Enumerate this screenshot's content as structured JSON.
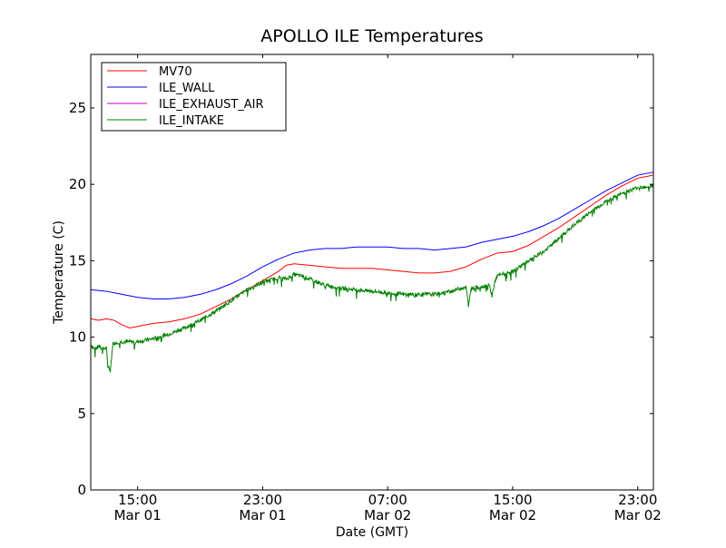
{
  "chart_data": {
    "type": "line",
    "title": "APOLLO ILE Temperatures",
    "xlabel": "Date (GMT)",
    "ylabel": "Temperature (C)",
    "ylim": [
      0,
      28.5
    ],
    "xlim": [
      "2013-03-01 12:00",
      "2013-03-03 00:00"
    ],
    "x_ticks": [
      {
        "time": "2013-03-01 15:00",
        "line1": "15:00",
        "line2": "Mar 01"
      },
      {
        "time": "2013-03-01 23:00",
        "line1": "23:00",
        "line2": "Mar 01"
      },
      {
        "time": "2013-03-02 07:00",
        "line1": "07:00",
        "line2": "Mar 02"
      },
      {
        "time": "2013-03-02 15:00",
        "line1": "15:00",
        "line2": "Mar 02"
      },
      {
        "time": "2013-03-02 23:00",
        "line1": "23:00",
        "line2": "Mar 02"
      }
    ],
    "y_ticks": [
      0,
      5,
      10,
      15,
      20,
      25
    ],
    "legend_position": "top-left",
    "grid": false,
    "series": [
      {
        "name": "MV70",
        "color": "#ff0000",
        "points": [
          [
            "2013-03-01 12:00",
            11.2
          ],
          [
            "2013-03-01 12:30",
            11.1
          ],
          [
            "2013-03-01 13:00",
            11.2
          ],
          [
            "2013-03-01 13:30",
            11.1
          ],
          [
            "2013-03-01 14:00",
            10.8
          ],
          [
            "2013-03-01 14:30",
            10.6
          ],
          [
            "2013-03-01 15:00",
            10.7
          ],
          [
            "2013-03-01 16:00",
            10.9
          ],
          [
            "2013-03-01 17:00",
            11.0
          ],
          [
            "2013-03-01 18:00",
            11.2
          ],
          [
            "2013-03-01 19:00",
            11.5
          ],
          [
            "2013-03-01 20:00",
            12.0
          ],
          [
            "2013-03-01 21:00",
            12.5
          ],
          [
            "2013-03-01 22:00",
            13.1
          ],
          [
            "2013-03-01 23:00",
            13.7
          ],
          [
            "2013-03-02 00:00",
            14.3
          ],
          [
            "2013-03-02 00:30",
            14.7
          ],
          [
            "2013-03-02 01:00",
            14.8
          ],
          [
            "2013-03-02 02:00",
            14.7
          ],
          [
            "2013-03-02 03:00",
            14.6
          ],
          [
            "2013-03-02 04:00",
            14.5
          ],
          [
            "2013-03-02 06:00",
            14.5
          ],
          [
            "2013-03-02 07:00",
            14.4
          ],
          [
            "2013-03-02 08:00",
            14.3
          ],
          [
            "2013-03-02 09:00",
            14.2
          ],
          [
            "2013-03-02 10:00",
            14.2
          ],
          [
            "2013-03-02 11:00",
            14.3
          ],
          [
            "2013-03-02 12:00",
            14.6
          ],
          [
            "2013-03-02 13:00",
            15.1
          ],
          [
            "2013-03-02 14:00",
            15.5
          ],
          [
            "2013-03-02 15:00",
            15.6
          ],
          [
            "2013-03-02 16:00",
            16.0
          ],
          [
            "2013-03-02 17:00",
            16.6
          ],
          [
            "2013-03-02 18:00",
            17.2
          ],
          [
            "2013-03-02 19:00",
            17.9
          ],
          [
            "2013-03-02 20:00",
            18.6
          ],
          [
            "2013-03-02 21:00",
            19.3
          ],
          [
            "2013-03-02 22:00",
            19.9
          ],
          [
            "2013-03-02 23:00",
            20.4
          ],
          [
            "2013-03-03 00:00",
            20.6
          ]
        ]
      },
      {
        "name": "ILE_WALL",
        "color": "#0000ff",
        "points": [
          [
            "2013-03-01 12:00",
            13.1
          ],
          [
            "2013-03-01 13:00",
            13.0
          ],
          [
            "2013-03-01 14:00",
            12.8
          ],
          [
            "2013-03-01 15:00",
            12.6
          ],
          [
            "2013-03-01 16:00",
            12.5
          ],
          [
            "2013-03-01 17:00",
            12.5
          ],
          [
            "2013-03-01 18:00",
            12.6
          ],
          [
            "2013-03-01 19:00",
            12.8
          ],
          [
            "2013-03-01 20:00",
            13.1
          ],
          [
            "2013-03-01 21:00",
            13.5
          ],
          [
            "2013-03-01 22:00",
            14.0
          ],
          [
            "2013-03-01 23:00",
            14.6
          ],
          [
            "2013-03-02 00:00",
            15.1
          ],
          [
            "2013-03-02 01:00",
            15.5
          ],
          [
            "2013-03-02 02:00",
            15.7
          ],
          [
            "2013-03-02 03:00",
            15.8
          ],
          [
            "2013-03-02 04:00",
            15.8
          ],
          [
            "2013-03-02 05:00",
            15.9
          ],
          [
            "2013-03-02 07:00",
            15.9
          ],
          [
            "2013-03-02 08:00",
            15.8
          ],
          [
            "2013-03-02 09:00",
            15.8
          ],
          [
            "2013-03-02 10:00",
            15.7
          ],
          [
            "2013-03-02 11:00",
            15.8
          ],
          [
            "2013-03-02 12:00",
            15.9
          ],
          [
            "2013-03-02 13:00",
            16.2
          ],
          [
            "2013-03-02 14:00",
            16.4
          ],
          [
            "2013-03-02 15:00",
            16.6
          ],
          [
            "2013-03-02 16:00",
            16.9
          ],
          [
            "2013-03-02 17:00",
            17.3
          ],
          [
            "2013-03-02 18:00",
            17.8
          ],
          [
            "2013-03-02 19:00",
            18.4
          ],
          [
            "2013-03-02 20:00",
            19.0
          ],
          [
            "2013-03-02 21:00",
            19.6
          ],
          [
            "2013-03-02 22:00",
            20.1
          ],
          [
            "2013-03-02 23:00",
            20.6
          ],
          [
            "2013-03-03 00:00",
            20.8
          ]
        ]
      },
      {
        "name": "ILE_EXHAUST_AIR",
        "color": "#bf00bf",
        "points": []
      },
      {
        "name": "ILE_INTAKE",
        "color": "#008000",
        "points": [
          [
            "2013-03-01 12:00",
            9.5
          ],
          [
            "2013-03-01 12:15",
            9.2
          ],
          [
            "2013-03-01 12:30",
            9.4
          ],
          [
            "2013-03-01 12:45",
            9.2
          ],
          [
            "2013-03-01 13:00",
            9.3
          ],
          [
            "2013-03-01 13:05",
            8.2
          ],
          [
            "2013-03-01 13:15",
            7.8
          ],
          [
            "2013-03-01 13:25",
            9.6
          ],
          [
            "2013-03-01 14:00",
            9.7
          ],
          [
            "2013-03-01 15:00",
            9.7
          ],
          [
            "2013-03-01 16:00",
            9.9
          ],
          [
            "2013-03-01 17:00",
            10.2
          ],
          [
            "2013-03-01 18:00",
            10.6
          ],
          [
            "2013-03-01 19:00",
            11.1
          ],
          [
            "2013-03-01 20:00",
            11.7
          ],
          [
            "2013-03-01 21:00",
            12.4
          ],
          [
            "2013-03-01 22:00",
            13.1
          ],
          [
            "2013-03-01 23:00",
            13.6
          ],
          [
            "2013-03-02 00:00",
            13.9
          ],
          [
            "2013-03-02 00:30",
            13.8
          ],
          [
            "2013-03-02 01:00",
            14.1
          ],
          [
            "2013-03-02 01:30",
            14.0
          ],
          [
            "2013-03-02 02:00",
            13.8
          ],
          [
            "2013-03-02 03:00",
            13.4
          ],
          [
            "2013-03-02 04:00",
            13.2
          ],
          [
            "2013-03-02 05:00",
            13.1
          ],
          [
            "2013-03-02 06:00",
            13.0
          ],
          [
            "2013-03-02 07:00",
            12.9
          ],
          [
            "2013-03-02 08:00",
            12.8
          ],
          [
            "2013-03-02 09:00",
            12.8
          ],
          [
            "2013-03-02 10:00",
            12.8
          ],
          [
            "2013-03-02 11:00",
            13.0
          ],
          [
            "2013-03-02 12:00",
            13.3
          ],
          [
            "2013-03-02 12:10",
            12.1
          ],
          [
            "2013-03-02 12:20",
            13.2
          ],
          [
            "2013-03-02 13:00",
            13.3
          ],
          [
            "2013-03-02 13:30",
            13.4
          ],
          [
            "2013-03-02 13:40",
            12.7
          ],
          [
            "2013-03-02 13:50",
            13.5
          ],
          [
            "2013-03-02 14:00",
            14.0
          ],
          [
            "2013-03-02 15:00",
            14.3
          ],
          [
            "2013-03-02 16:00",
            15.0
          ],
          [
            "2013-03-02 17:00",
            15.6
          ],
          [
            "2013-03-02 18:00",
            16.5
          ],
          [
            "2013-03-02 19:00",
            17.4
          ],
          [
            "2013-03-02 20:00",
            18.2
          ],
          [
            "2013-03-02 21:00",
            18.9
          ],
          [
            "2013-03-02 22:00",
            19.4
          ],
          [
            "2013-03-02 23:00",
            19.8
          ],
          [
            "2013-03-03 00:00",
            19.9
          ]
        ]
      }
    ]
  }
}
